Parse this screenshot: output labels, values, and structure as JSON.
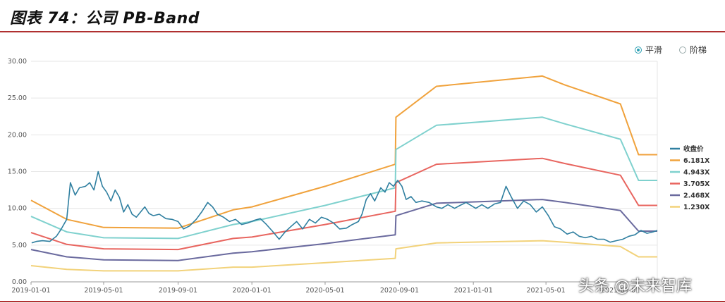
{
  "figure_title": "图表 74：公司 PB-Band",
  "toggles": [
    {
      "label": "平滑",
      "selected": true
    },
    {
      "label": "阶梯",
      "selected": false
    }
  ],
  "watermark": "头条 @未来智库",
  "chart_data": {
    "type": "line",
    "title": "",
    "xlabel": "",
    "ylabel": "",
    "ylim": [
      0,
      30
    ],
    "yticks": [
      "0.00",
      "5.00",
      "10.00",
      "15.00",
      "20.00",
      "25.00",
      "30.00"
    ],
    "xlim": [
      "2019-01-01",
      "2021-11-01"
    ],
    "xticks": [
      "2019-01-01",
      "2019-05-01",
      "2019-09-01",
      "2020-01-01",
      "2020-05-01",
      "2020-09-01",
      "2021-01-01",
      "2021-05-01",
      "2021-09-01"
    ],
    "grid": "horizontal",
    "legend_position": "right",
    "series": [
      {
        "name": "收盘价",
        "color": "#2f7fa0",
        "points": [
          [
            "2019-01-02",
            5.3
          ],
          [
            "2019-01-10",
            5.5
          ],
          [
            "2019-01-20",
            5.6
          ],
          [
            "2019-02-01",
            5.5
          ],
          [
            "2019-02-12",
            6.2
          ],
          [
            "2019-02-20",
            7.2
          ],
          [
            "2019-03-01",
            8.5
          ],
          [
            "2019-03-07",
            13.5
          ],
          [
            "2019-03-15",
            11.8
          ],
          [
            "2019-03-22",
            12.8
          ],
          [
            "2019-04-01",
            13.0
          ],
          [
            "2019-04-08",
            13.5
          ],
          [
            "2019-04-15",
            12.5
          ],
          [
            "2019-04-22",
            15.0
          ],
          [
            "2019-04-29",
            13.0
          ],
          [
            "2019-05-06",
            12.2
          ],
          [
            "2019-05-13",
            11.0
          ],
          [
            "2019-05-20",
            12.5
          ],
          [
            "2019-05-27",
            11.5
          ],
          [
            "2019-06-03",
            9.5
          ],
          [
            "2019-06-10",
            10.5
          ],
          [
            "2019-06-17",
            9.2
          ],
          [
            "2019-06-24",
            8.8
          ],
          [
            "2019-07-01",
            9.5
          ],
          [
            "2019-07-08",
            10.2
          ],
          [
            "2019-07-15",
            9.3
          ],
          [
            "2019-07-22",
            9.0
          ],
          [
            "2019-08-01",
            9.2
          ],
          [
            "2019-08-12",
            8.6
          ],
          [
            "2019-08-22",
            8.5
          ],
          [
            "2019-09-01",
            8.2
          ],
          [
            "2019-09-10",
            7.2
          ],
          [
            "2019-09-20",
            7.6
          ],
          [
            "2019-10-01",
            8.5
          ],
          [
            "2019-10-10",
            9.5
          ],
          [
            "2019-10-20",
            10.8
          ],
          [
            "2019-10-28",
            10.2
          ],
          [
            "2019-11-05",
            9.2
          ],
          [
            "2019-11-15",
            8.8
          ],
          [
            "2019-11-25",
            8.2
          ],
          [
            "2019-12-05",
            8.5
          ],
          [
            "2019-12-15",
            7.8
          ],
          [
            "2019-12-25",
            8.0
          ],
          [
            "2020-01-06",
            8.4
          ],
          [
            "2020-01-15",
            8.6
          ],
          [
            "2020-01-25",
            7.8
          ],
          [
            "2020-02-05",
            6.8
          ],
          [
            "2020-02-15",
            5.8
          ],
          [
            "2020-02-25",
            6.8
          ],
          [
            "2020-03-05",
            7.5
          ],
          [
            "2020-03-15",
            8.2
          ],
          [
            "2020-03-25",
            7.2
          ],
          [
            "2020-04-05",
            8.5
          ],
          [
            "2020-04-15",
            8.0
          ],
          [
            "2020-04-25",
            8.8
          ],
          [
            "2020-05-05",
            8.5
          ],
          [
            "2020-05-15",
            8.0
          ],
          [
            "2020-05-25",
            7.2
          ],
          [
            "2020-06-05",
            7.3
          ],
          [
            "2020-06-15",
            7.8
          ],
          [
            "2020-06-25",
            8.2
          ],
          [
            "2020-07-01",
            9.2
          ],
          [
            "2020-07-08",
            11.2
          ],
          [
            "2020-07-15",
            12.0
          ],
          [
            "2020-07-22",
            11.0
          ],
          [
            "2020-08-01",
            12.8
          ],
          [
            "2020-08-08",
            12.2
          ],
          [
            "2020-08-15",
            13.5
          ],
          [
            "2020-08-22",
            13.0
          ],
          [
            "2020-08-29",
            13.8
          ],
          [
            "2020-09-05",
            13.0
          ],
          [
            "2020-09-12",
            11.2
          ],
          [
            "2020-09-20",
            11.6
          ],
          [
            "2020-09-28",
            10.8
          ],
          [
            "2020-10-08",
            11.0
          ],
          [
            "2020-10-20",
            10.8
          ],
          [
            "2020-11-01",
            10.2
          ],
          [
            "2020-11-10",
            10.0
          ],
          [
            "2020-11-20",
            10.5
          ],
          [
            "2020-12-01",
            10.0
          ],
          [
            "2020-12-10",
            10.4
          ],
          [
            "2020-12-20",
            10.8
          ],
          [
            "2021-01-05",
            10.0
          ],
          [
            "2021-01-15",
            10.5
          ],
          [
            "2021-01-25",
            10.0
          ],
          [
            "2021-02-05",
            10.6
          ],
          [
            "2021-02-15",
            10.8
          ],
          [
            "2021-02-24",
            13.0
          ],
          [
            "2021-03-05",
            11.5
          ],
          [
            "2021-03-15",
            10.0
          ],
          [
            "2021-03-25",
            11.0
          ],
          [
            "2021-04-05",
            10.5
          ],
          [
            "2021-04-15",
            9.5
          ],
          [
            "2021-04-25",
            10.2
          ],
          [
            "2021-05-05",
            9.0
          ],
          [
            "2021-05-15",
            7.5
          ],
          [
            "2021-05-25",
            7.2
          ],
          [
            "2021-06-05",
            6.5
          ],
          [
            "2021-06-15",
            6.8
          ],
          [
            "2021-06-25",
            6.2
          ],
          [
            "2021-07-05",
            6.0
          ],
          [
            "2021-07-15",
            6.2
          ],
          [
            "2021-07-25",
            5.8
          ],
          [
            "2021-08-05",
            5.8
          ],
          [
            "2021-08-15",
            5.4
          ],
          [
            "2021-08-25",
            5.6
          ],
          [
            "2021-09-05",
            5.8
          ],
          [
            "2021-09-15",
            6.2
          ],
          [
            "2021-09-25",
            6.4
          ],
          [
            "2021-10-05",
            7.0
          ],
          [
            "2021-10-15",
            6.6
          ],
          [
            "2021-10-25",
            6.8
          ],
          [
            "2021-11-01",
            7.0
          ]
        ]
      },
      {
        "name": "6.181X",
        "color": "#f0a23c",
        "points": [
          [
            "2019-01-01",
            11.1
          ],
          [
            "2019-03-01",
            8.5
          ],
          [
            "2019-05-01",
            7.4
          ],
          [
            "2019-09-01",
            7.3
          ],
          [
            "2019-12-01",
            9.8
          ],
          [
            "2020-01-01",
            10.2
          ],
          [
            "2020-05-01",
            13.0
          ],
          [
            "2020-08-25",
            16.0
          ],
          [
            "2020-08-26",
            22.4
          ],
          [
            "2020-11-01",
            26.6
          ],
          [
            "2021-04-25",
            28.0
          ],
          [
            "2021-06-01",
            26.8
          ],
          [
            "2021-09-01",
            24.2
          ],
          [
            "2021-10-01",
            17.3
          ],
          [
            "2021-11-01",
            17.3
          ]
        ]
      },
      {
        "name": "4.943X",
        "color": "#7fd1ce",
        "points": [
          [
            "2019-01-01",
            8.9
          ],
          [
            "2019-03-01",
            6.8
          ],
          [
            "2019-05-01",
            6.0
          ],
          [
            "2019-09-01",
            5.9
          ],
          [
            "2019-12-01",
            7.8
          ],
          [
            "2020-01-01",
            8.2
          ],
          [
            "2020-05-01",
            10.4
          ],
          [
            "2020-08-25",
            12.8
          ],
          [
            "2020-08-26",
            18.0
          ],
          [
            "2020-11-01",
            21.3
          ],
          [
            "2021-04-25",
            22.4
          ],
          [
            "2021-06-01",
            21.5
          ],
          [
            "2021-09-01",
            19.4
          ],
          [
            "2021-10-01",
            13.8
          ],
          [
            "2021-11-01",
            13.8
          ]
        ]
      },
      {
        "name": "3.705X",
        "color": "#e8655f",
        "points": [
          [
            "2019-01-01",
            6.7
          ],
          [
            "2019-03-01",
            5.1
          ],
          [
            "2019-05-01",
            4.5
          ],
          [
            "2019-09-01",
            4.4
          ],
          [
            "2019-12-01",
            5.9
          ],
          [
            "2020-01-01",
            6.1
          ],
          [
            "2020-05-01",
            7.8
          ],
          [
            "2020-08-25",
            9.6
          ],
          [
            "2020-08-26",
            13.5
          ],
          [
            "2020-11-01",
            16.0
          ],
          [
            "2021-04-25",
            16.8
          ],
          [
            "2021-06-01",
            16.1
          ],
          [
            "2021-09-01",
            14.5
          ],
          [
            "2021-10-01",
            10.4
          ],
          [
            "2021-11-01",
            10.4
          ]
        ]
      },
      {
        "name": "2.468X",
        "color": "#6a6a9e",
        "points": [
          [
            "2019-01-01",
            4.4
          ],
          [
            "2019-03-01",
            3.4
          ],
          [
            "2019-05-01",
            3.0
          ],
          [
            "2019-09-01",
            2.9
          ],
          [
            "2019-12-01",
            3.9
          ],
          [
            "2020-01-01",
            4.1
          ],
          [
            "2020-05-01",
            5.2
          ],
          [
            "2020-08-25",
            6.4
          ],
          [
            "2020-08-26",
            9.0
          ],
          [
            "2020-11-01",
            10.7
          ],
          [
            "2021-04-25",
            11.2
          ],
          [
            "2021-06-01",
            10.8
          ],
          [
            "2021-09-01",
            9.7
          ],
          [
            "2021-10-01",
            6.9
          ],
          [
            "2021-11-01",
            6.9
          ]
        ]
      },
      {
        "name": "1.230X",
        "color": "#f2d27a",
        "points": [
          [
            "2019-01-01",
            2.2
          ],
          [
            "2019-03-01",
            1.7
          ],
          [
            "2019-05-01",
            1.5
          ],
          [
            "2019-09-01",
            1.5
          ],
          [
            "2019-12-01",
            2.0
          ],
          [
            "2020-01-01",
            2.0
          ],
          [
            "2020-05-01",
            2.6
          ],
          [
            "2020-08-25",
            3.2
          ],
          [
            "2020-08-26",
            4.5
          ],
          [
            "2020-11-01",
            5.3
          ],
          [
            "2021-04-25",
            5.6
          ],
          [
            "2021-06-01",
            5.4
          ],
          [
            "2021-09-01",
            4.8
          ],
          [
            "2021-10-01",
            3.4
          ],
          [
            "2021-11-01",
            3.4
          ]
        ]
      }
    ]
  }
}
